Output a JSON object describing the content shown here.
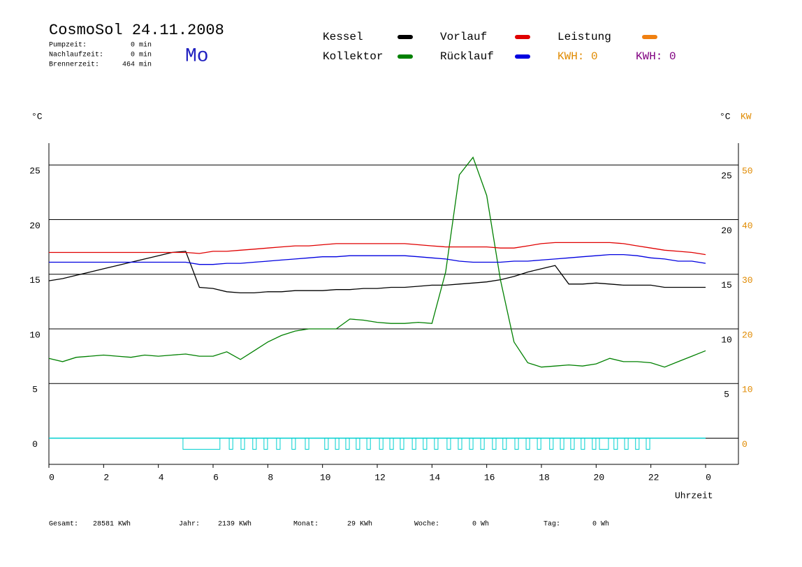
{
  "chart_data": {
    "type": "line",
    "title": "CosmoSol 24.11.2008",
    "weekday": "Mo",
    "info": [
      {
        "label": "Pumpzeit:",
        "value": "0 min"
      },
      {
        "label": "Nachlaufzeit:",
        "value": "0 min"
      },
      {
        "label": "Brennerzeit:",
        "value": "464 min"
      }
    ],
    "kwh_labels": [
      {
        "text": "KWH: 0",
        "color": "#e08a00"
      },
      {
        "text": "KWH: 0",
        "color": "#800080"
      }
    ],
    "y_unit": "°C",
    "y_unit_right": "°C",
    "y2_unit": "KW",
    "xlabel": "Uhrzeit",
    "xlim": [
      0,
      25.2
    ],
    "xticks": [
      0,
      2,
      4,
      6,
      8,
      10,
      12,
      14,
      16,
      18,
      20,
      22,
      {
        "value": 24,
        "label": "0"
      }
    ],
    "ylim": [
      -2.4,
      27
    ],
    "yticks": [
      0,
      5,
      10,
      15,
      20,
      25
    ],
    "yticks_right": [
      5,
      10,
      15,
      20,
      25
    ],
    "y2lim": [
      -4.8,
      54
    ],
    "y2ticks": [
      0,
      10,
      20,
      30,
      40,
      50
    ],
    "y2color": "#e08a00",
    "grid": true,
    "x": [
      0,
      0.5,
      1,
      1.5,
      2,
      2.5,
      3,
      3.5,
      4,
      4.5,
      5,
      5.5,
      6,
      6.5,
      7,
      7.5,
      8,
      8.5,
      9,
      9.5,
      10,
      10.5,
      11,
      11.5,
      12,
      12.5,
      13,
      13.5,
      14,
      14.5,
      15,
      15.5,
      16,
      16.5,
      17,
      17.5,
      18,
      18.5,
      19,
      19.5,
      20,
      20.5,
      21,
      21.5,
      22,
      22.5,
      23,
      23.5,
      24
    ],
    "series": [
      {
        "name": "Kessel",
        "color": "#000000",
        "values": [
          14.4,
          14.6,
          14.9,
          15.2,
          15.5,
          15.8,
          16.1,
          16.4,
          16.7,
          17.0,
          17.1,
          13.8,
          13.7,
          13.4,
          13.3,
          13.3,
          13.4,
          13.4,
          13.5,
          13.5,
          13.5,
          13.6,
          13.6,
          13.7,
          13.7,
          13.8,
          13.8,
          13.9,
          14.0,
          14.0,
          14.1,
          14.2,
          14.3,
          14.5,
          14.8,
          15.2,
          15.5,
          15.8,
          14.1,
          14.1,
          14.2,
          14.1,
          14.0,
          14.0,
          14.0,
          13.8,
          13.8,
          13.8,
          13.8
        ]
      },
      {
        "name": "Kollektor",
        "color": "#008000",
        "values": [
          7.3,
          7.0,
          7.4,
          7.5,
          7.6,
          7.5,
          7.4,
          7.6,
          7.5,
          7.6,
          7.7,
          7.5,
          7.5,
          7.9,
          7.2,
          8.0,
          8.8,
          9.4,
          9.8,
          10.0,
          10.0,
          10.0,
          10.9,
          10.8,
          10.6,
          10.5,
          10.5,
          10.6,
          10.5,
          15.2,
          24.1,
          25.7,
          22.2,
          14.5,
          8.8,
          6.9,
          6.5,
          6.6,
          6.7,
          6.6,
          6.8,
          7.3,
          7.0,
          7.0,
          6.9,
          6.5,
          7.0,
          7.5,
          8.0
        ]
      },
      {
        "name": "Vorlauf",
        "color": "#e00000",
        "values": [
          17.0,
          17.0,
          17.0,
          17.0,
          17.0,
          17.0,
          17.0,
          17.0,
          17.0,
          17.0,
          17.0,
          16.9,
          17.1,
          17.1,
          17.2,
          17.3,
          17.4,
          17.5,
          17.6,
          17.6,
          17.7,
          17.8,
          17.8,
          17.8,
          17.8,
          17.8,
          17.8,
          17.7,
          17.6,
          17.5,
          17.5,
          17.5,
          17.5,
          17.4,
          17.4,
          17.6,
          17.8,
          17.9,
          17.9,
          17.9,
          17.9,
          17.9,
          17.8,
          17.6,
          17.4,
          17.2,
          17.1,
          17.0,
          16.8
        ]
      },
      {
        "name": "Rücklauf",
        "color": "#0000e0",
        "values": [
          16.1,
          16.1,
          16.1,
          16.1,
          16.1,
          16.1,
          16.1,
          16.1,
          16.1,
          16.1,
          16.1,
          15.9,
          15.9,
          16.0,
          16.0,
          16.1,
          16.2,
          16.3,
          16.4,
          16.5,
          16.6,
          16.6,
          16.7,
          16.7,
          16.7,
          16.7,
          16.7,
          16.6,
          16.5,
          16.4,
          16.2,
          16.1,
          16.1,
          16.1,
          16.2,
          16.2,
          16.3,
          16.4,
          16.5,
          16.6,
          16.7,
          16.8,
          16.8,
          16.7,
          16.5,
          16.4,
          16.2,
          16.2,
          16.0
        ]
      },
      {
        "name": "Leistung",
        "color": "#f08010"
      }
    ],
    "pump_color": "#00d0d0",
    "pump_intervals": [
      [
        4.9,
        6.25
      ],
      [
        6.59,
        6.72
      ],
      [
        7.02,
        7.15
      ],
      [
        7.45,
        7.58
      ],
      [
        7.86,
        7.99
      ],
      [
        8.32,
        8.45
      ],
      [
        8.88,
        9.01
      ],
      [
        9.37,
        9.5
      ],
      [
        10.08,
        10.21
      ],
      [
        10.47,
        10.6
      ],
      [
        10.85,
        10.98
      ],
      [
        11.23,
        11.36
      ],
      [
        11.62,
        11.75
      ],
      [
        12.08,
        12.21
      ],
      [
        12.46,
        12.59
      ],
      [
        12.84,
        12.97
      ],
      [
        13.28,
        13.41
      ],
      [
        13.68,
        13.81
      ],
      [
        14.09,
        14.22
      ],
      [
        14.55,
        14.68
      ],
      [
        14.96,
        15.09
      ],
      [
        15.37,
        15.5
      ],
      [
        15.78,
        15.91
      ],
      [
        16.21,
        16.34
      ],
      [
        16.59,
        16.72
      ],
      [
        17.03,
        17.16
      ],
      [
        17.44,
        17.57
      ],
      [
        17.85,
        17.98
      ],
      [
        18.3,
        18.43
      ],
      [
        18.69,
        18.82
      ],
      [
        19.07,
        19.2
      ],
      [
        19.45,
        19.58
      ],
      [
        19.86,
        19.99
      ],
      [
        20.12,
        20.45
      ],
      [
        20.65,
        20.78
      ],
      [
        21.04,
        21.17
      ],
      [
        21.44,
        21.57
      ],
      [
        21.83,
        21.96
      ]
    ],
    "footer": [
      {
        "label": "Gesamt:",
        "value": "28581 KWh"
      },
      {
        "label": "Jahr:",
        "value": "2139 KWh"
      },
      {
        "label": "Monat:",
        "value": "29 KWh"
      },
      {
        "label": "Woche:",
        "value": "0 Wh"
      },
      {
        "label": "Tag:",
        "value": "0 Wh"
      }
    ]
  }
}
